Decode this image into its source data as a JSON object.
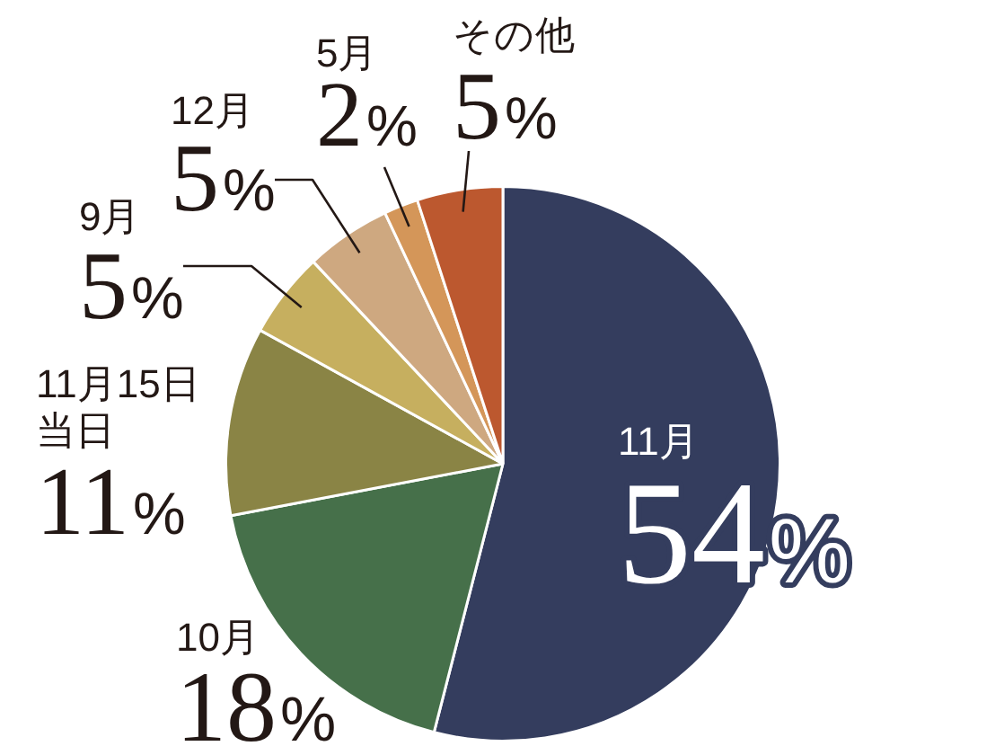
{
  "chart_data": {
    "type": "pie",
    "categories": [
      "11月",
      "10月",
      "11月15日当日",
      "9月",
      "12月",
      "5月",
      "その他"
    ],
    "values": [
      54,
      18,
      11,
      5,
      5,
      2,
      5
    ],
    "colors": [
      "#343d5e",
      "#46704a",
      "#8a8445",
      "#c6af5f",
      "#cea880",
      "#d49659",
      "#bc582f"
    ],
    "value_labels": [
      "54%",
      "18%",
      "11%",
      "5%",
      "5%",
      "2%",
      "5%"
    ]
  }
}
